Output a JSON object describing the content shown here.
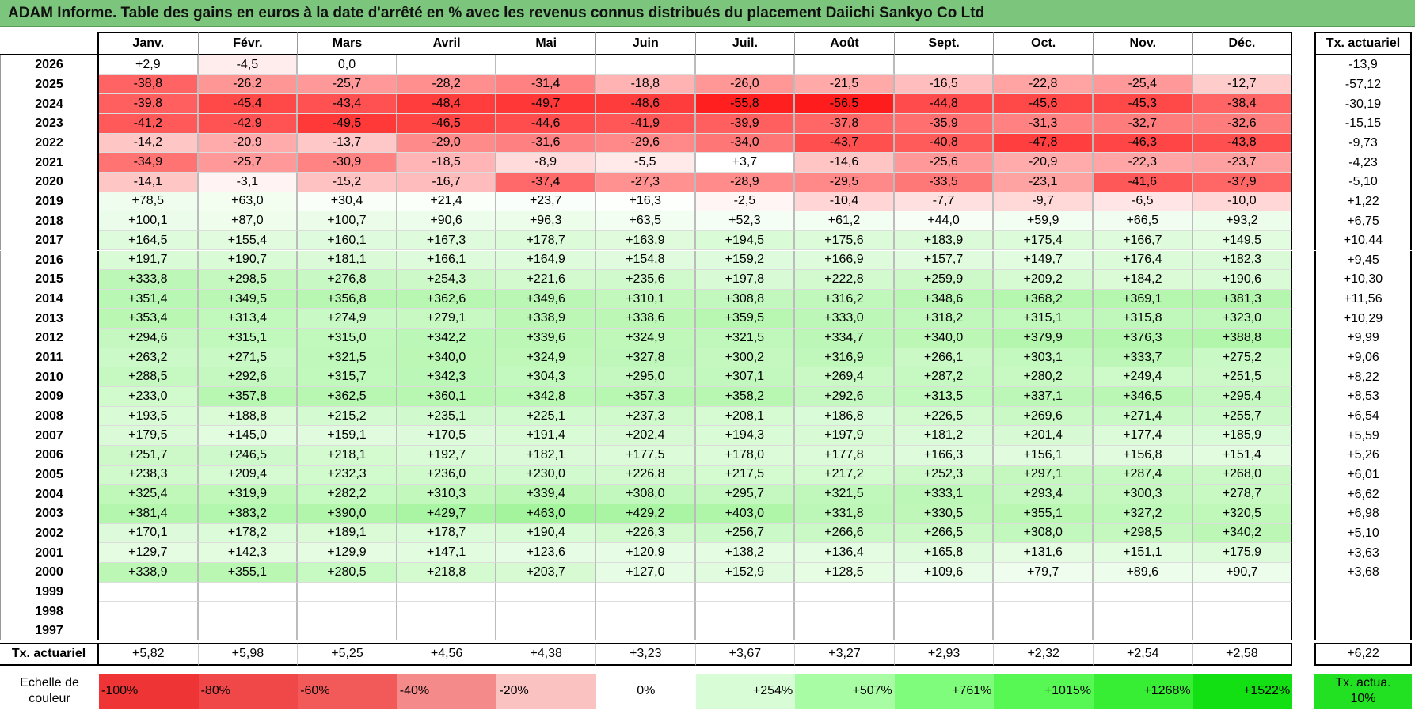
{
  "title": "ADAM Informe. Table des gains en euros à la date d'arrêté en % avec les revenus connus distribués du placement Daiichi Sankyo Co Ltd",
  "table": {
    "headers": [
      "Janv.",
      "Févr.",
      "Mars",
      "Avril",
      "Mai",
      "Juin",
      "Juil.",
      "Août",
      "Sept.",
      "Oct.",
      "Nov.",
      "Déc."
    ],
    "rate_header": "Tx. actuariel",
    "rows": [
      {
        "year": "2026",
        "cells": [
          "+2,9",
          "-4,5",
          "0,0",
          null,
          null,
          null,
          null,
          null,
          null,
          null,
          null,
          null
        ],
        "rate": "-13,9"
      },
      {
        "year": "2025",
        "cells": [
          "-38,8",
          "-26,2",
          "-25,7",
          "-28,2",
          "-31,4",
          "-18,8",
          "-26,0",
          "-21,5",
          "-16,5",
          "-22,8",
          "-25,4",
          "-12,7"
        ],
        "rate": "-57,12"
      },
      {
        "year": "2024",
        "cells": [
          "-39,8",
          "-45,4",
          "-43,4",
          "-48,4",
          "-49,7",
          "-48,6",
          "-55,8",
          "-56,5",
          "-44,8",
          "-45,6",
          "-45,3",
          "-38,4"
        ],
        "rate": "-30,19"
      },
      {
        "year": "2023",
        "cells": [
          "-41,2",
          "-42,9",
          "-49,5",
          "-46,5",
          "-44,6",
          "-41,9",
          "-39,9",
          "-37,8",
          "-35,9",
          "-31,3",
          "-32,7",
          "-32,6"
        ],
        "rate": "-15,15"
      },
      {
        "year": "2022",
        "cells": [
          "-14,2",
          "-20,9",
          "-13,7",
          "-29,0",
          "-31,6",
          "-29,6",
          "-34,0",
          "-43,7",
          "-40,8",
          "-47,8",
          "-46,3",
          "-43,8"
        ],
        "rate": "-9,73"
      },
      {
        "year": "2021",
        "cells": [
          "-34,9",
          "-25,7",
          "-30,9",
          "-18,5",
          "-8,9",
          "-5,5",
          "+3,7",
          "-14,6",
          "-25,6",
          "-20,9",
          "-22,3",
          "-23,7"
        ],
        "rate": "-4,23"
      },
      {
        "year": "2020",
        "cells": [
          "-14,1",
          "-3,1",
          "-15,2",
          "-16,7",
          "-37,4",
          "-27,3",
          "-28,9",
          "-29,5",
          "-33,5",
          "-23,1",
          "-41,6",
          "-37,9"
        ],
        "rate": "-5,10"
      },
      {
        "year": "2019",
        "cells": [
          "+78,5",
          "+63,0",
          "+30,4",
          "+21,4",
          "+23,7",
          "+16,3",
          "-2,5",
          "-10,4",
          "-7,7",
          "-9,7",
          "-6,5",
          "-10,0"
        ],
        "rate": "+1,22"
      },
      {
        "year": "2018",
        "cells": [
          "+100,1",
          "+87,0",
          "+100,7",
          "+90,6",
          "+96,3",
          "+63,5",
          "+52,3",
          "+61,2",
          "+44,0",
          "+59,9",
          "+66,5",
          "+93,2"
        ],
        "rate": "+6,75"
      },
      {
        "year": "2017",
        "cells": [
          "+164,5",
          "+155,4",
          "+160,1",
          "+167,3",
          "+178,7",
          "+163,9",
          "+194,5",
          "+175,6",
          "+183,9",
          "+175,4",
          "+166,7",
          "+149,5"
        ],
        "rate": "+10,44"
      },
      {
        "year": "2016",
        "cells": [
          "+191,7",
          "+190,7",
          "+181,1",
          "+166,1",
          "+164,9",
          "+154,8",
          "+159,2",
          "+166,9",
          "+157,7",
          "+149,7",
          "+176,4",
          "+182,3"
        ],
        "rate": "+9,45"
      },
      {
        "year": "2015",
        "cells": [
          "+333,8",
          "+298,5",
          "+276,8",
          "+254,3",
          "+221,6",
          "+235,6",
          "+197,8",
          "+222,8",
          "+259,9",
          "+209,2",
          "+184,2",
          "+190,6"
        ],
        "rate": "+10,30"
      },
      {
        "year": "2014",
        "cells": [
          "+351,4",
          "+349,5",
          "+356,8",
          "+362,6",
          "+349,6",
          "+310,1",
          "+308,8",
          "+316,2",
          "+348,6",
          "+368,2",
          "+369,1",
          "+381,3"
        ],
        "rate": "+11,56"
      },
      {
        "year": "2013",
        "cells": [
          "+353,4",
          "+313,4",
          "+274,9",
          "+279,1",
          "+338,9",
          "+338,6",
          "+359,5",
          "+333,0",
          "+318,2",
          "+315,1",
          "+315,8",
          "+323,0"
        ],
        "rate": "+10,29"
      },
      {
        "year": "2012",
        "cells": [
          "+294,6",
          "+315,1",
          "+315,0",
          "+342,2",
          "+339,6",
          "+324,9",
          "+321,5",
          "+334,7",
          "+340,0",
          "+379,9",
          "+376,3",
          "+388,8"
        ],
        "rate": "+9,99"
      },
      {
        "year": "2011",
        "cells": [
          "+263,2",
          "+271,5",
          "+321,5",
          "+340,0",
          "+324,9",
          "+327,8",
          "+300,2",
          "+316,9",
          "+266,1",
          "+303,1",
          "+333,7",
          "+275,2"
        ],
        "rate": "+9,06"
      },
      {
        "year": "2010",
        "cells": [
          "+288,5",
          "+292,6",
          "+315,7",
          "+342,3",
          "+304,3",
          "+295,0",
          "+307,1",
          "+269,4",
          "+287,2",
          "+280,2",
          "+249,4",
          "+251,5"
        ],
        "rate": "+8,22"
      },
      {
        "year": "2009",
        "cells": [
          "+233,0",
          "+357,8",
          "+362,5",
          "+360,1",
          "+342,8",
          "+357,3",
          "+358,2",
          "+292,6",
          "+313,5",
          "+337,1",
          "+346,5",
          "+295,4"
        ],
        "rate": "+8,53"
      },
      {
        "year": "2008",
        "cells": [
          "+193,5",
          "+188,8",
          "+215,2",
          "+235,1",
          "+225,1",
          "+237,3",
          "+208,1",
          "+186,8",
          "+226,5",
          "+269,6",
          "+271,4",
          "+255,7"
        ],
        "rate": "+6,54"
      },
      {
        "year": "2007",
        "cells": [
          "+179,5",
          "+145,0",
          "+159,1",
          "+170,5",
          "+191,4",
          "+202,4",
          "+194,3",
          "+197,9",
          "+181,2",
          "+201,4",
          "+177,4",
          "+185,9"
        ],
        "rate": "+5,59"
      },
      {
        "year": "2006",
        "cells": [
          "+251,7",
          "+246,5",
          "+218,1",
          "+192,7",
          "+182,1",
          "+177,5",
          "+178,0",
          "+177,8",
          "+166,3",
          "+156,1",
          "+156,8",
          "+151,4"
        ],
        "rate": "+5,26"
      },
      {
        "year": "2005",
        "cells": [
          "+238,3",
          "+209,4",
          "+232,3",
          "+236,0",
          "+230,0",
          "+226,8",
          "+217,5",
          "+217,2",
          "+252,3",
          "+297,1",
          "+287,4",
          "+268,0"
        ],
        "rate": "+6,01"
      },
      {
        "year": "2004",
        "cells": [
          "+325,4",
          "+319,9",
          "+282,2",
          "+310,3",
          "+339,4",
          "+308,0",
          "+295,7",
          "+321,5",
          "+333,1",
          "+293,4",
          "+300,3",
          "+278,7"
        ],
        "rate": "+6,62"
      },
      {
        "year": "2003",
        "cells": [
          "+381,4",
          "+383,2",
          "+390,0",
          "+429,7",
          "+463,0",
          "+429,2",
          "+403,0",
          "+331,8",
          "+330,5",
          "+355,1",
          "+327,2",
          "+320,5"
        ],
        "rate": "+6,98"
      },
      {
        "year": "2002",
        "cells": [
          "+170,1",
          "+178,2",
          "+189,1",
          "+178,7",
          "+190,4",
          "+226,3",
          "+256,7",
          "+266,6",
          "+266,5",
          "+308,0",
          "+298,5",
          "+340,2"
        ],
        "rate": "+5,10"
      },
      {
        "year": "2001",
        "cells": [
          "+129,7",
          "+142,3",
          "+129,9",
          "+147,1",
          "+123,6",
          "+120,9",
          "+138,2",
          "+136,4",
          "+165,8",
          "+131,6",
          "+151,1",
          "+175,9"
        ],
        "rate": "+3,63"
      },
      {
        "year": "2000",
        "cells": [
          "+338,9",
          "+355,1",
          "+280,5",
          "+218,8",
          "+203,7",
          "+127,0",
          "+152,9",
          "+128,5",
          "+109,6",
          "+79,7",
          "+89,6",
          "+90,7"
        ],
        "rate": "+3,68"
      },
      {
        "year": "1999",
        "cells": [
          null,
          null,
          null,
          null,
          null,
          null,
          null,
          null,
          null,
          null,
          null,
          null
        ],
        "rate": null
      },
      {
        "year": "1998",
        "cells": [
          null,
          null,
          null,
          null,
          null,
          null,
          null,
          null,
          null,
          null,
          null,
          null
        ],
        "rate": null
      },
      {
        "year": "1997",
        "cells": [
          null,
          null,
          null,
          null,
          null,
          null,
          null,
          null,
          null,
          null,
          null,
          null
        ],
        "rate": null
      }
    ],
    "footer": {
      "label": "Tx. actuariel",
      "cells": [
        "+5,82",
        "+5,98",
        "+5,25",
        "+4,56",
        "+4,38",
        "+3,23",
        "+3,67",
        "+3,27",
        "+2,93",
        "+2,32",
        "+2,54",
        "+2,58"
      ],
      "rate": "+6,22"
    }
  },
  "scale": {
    "label": "Echelle de couleur",
    "steps": [
      "-100%",
      "-80%",
      "-60%",
      "-40%",
      "-20%",
      "0%",
      "+254%",
      "+507%",
      "+761%",
      "+1015%",
      "+1268%",
      "+1522%"
    ],
    "rate_label": "Tx. actua. 10%"
  }
}
